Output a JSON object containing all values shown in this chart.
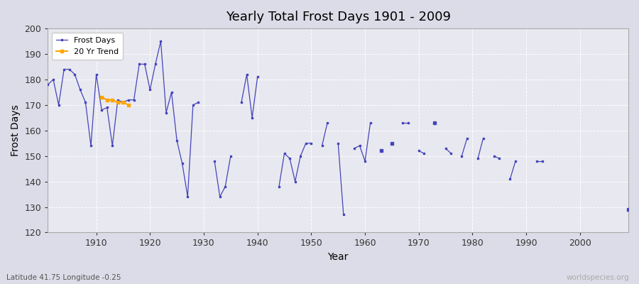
{
  "title": "Yearly Total Frost Days 1901 - 2009",
  "xlabel": "Year",
  "ylabel": "Frost Days",
  "lat_lon_label": "Latitude 41.75 Longitude -0.25",
  "watermark": "worldspecies.org",
  "ylim": [
    120,
    200
  ],
  "xlim_min": 1901,
  "xlim_max": 2009,
  "bg_color": "#dcdce8",
  "plot_bg_color": "#e8e8f0",
  "line_color": "#4444bb",
  "trend_color": "#FFA500",
  "xticks": [
    1910,
    1920,
    1930,
    1940,
    1950,
    1960,
    1970,
    1980,
    1990,
    2000
  ],
  "yticks": [
    120,
    130,
    140,
    150,
    160,
    170,
    180,
    190,
    200
  ],
  "frost_data": [
    [
      1901,
      178
    ],
    [
      1902,
      180
    ],
    [
      1903,
      170
    ],
    [
      1904,
      184
    ],
    [
      1905,
      184
    ],
    [
      1906,
      182
    ],
    [
      1907,
      176
    ],
    [
      1908,
      171
    ],
    [
      1909,
      154
    ],
    [
      1910,
      182
    ],
    [
      1911,
      168
    ],
    [
      1912,
      169
    ],
    [
      1913,
      154
    ],
    [
      1914,
      172
    ],
    [
      1915,
      171
    ],
    [
      1916,
      172
    ],
    [
      1917,
      172
    ],
    [
      1918,
      186
    ],
    [
      1919,
      186
    ],
    [
      1920,
      176
    ],
    [
      1921,
      186
    ],
    [
      1922,
      195
    ],
    [
      1923,
      167
    ],
    [
      1924,
      175
    ],
    [
      1925,
      156
    ],
    [
      1926,
      147
    ],
    [
      1927,
      134
    ],
    [
      1928,
      170
    ],
    [
      1929,
      171
    ],
    [
      1932,
      148
    ],
    [
      1933,
      134
    ],
    [
      1934,
      138
    ],
    [
      1935,
      150
    ],
    [
      1937,
      171
    ],
    [
      1938,
      182
    ],
    [
      1939,
      165
    ],
    [
      1940,
      181
    ],
    [
      1944,
      138
    ],
    [
      1945,
      151
    ],
    [
      1946,
      149
    ],
    [
      1947,
      140
    ],
    [
      1948,
      150
    ],
    [
      1949,
      155
    ],
    [
      1950,
      155
    ],
    [
      1952,
      154
    ],
    [
      1953,
      163
    ],
    [
      1955,
      155
    ],
    [
      1956,
      127
    ],
    [
      1958,
      153
    ],
    [
      1959,
      154
    ],
    [
      1960,
      148
    ],
    [
      1961,
      163
    ],
    [
      1963,
      152
    ],
    [
      1965,
      155
    ],
    [
      1967,
      163
    ],
    [
      1968,
      163
    ],
    [
      1970,
      152
    ],
    [
      1971,
      151
    ],
    [
      1973,
      163
    ],
    [
      1975,
      153
    ],
    [
      1976,
      151
    ],
    [
      1978,
      150
    ],
    [
      1979,
      157
    ],
    [
      1981,
      149
    ],
    [
      1982,
      157
    ],
    [
      1984,
      150
    ],
    [
      1985,
      149
    ],
    [
      1987,
      141
    ],
    [
      1988,
      148
    ],
    [
      1992,
      148
    ],
    [
      1993,
      148
    ],
    [
      2009,
      129
    ]
  ],
  "trend_years": [
    1911,
    1912,
    1913,
    1914,
    1915,
    1916
  ],
  "trend_values": [
    173,
    172,
    172,
    171,
    171,
    170
  ]
}
